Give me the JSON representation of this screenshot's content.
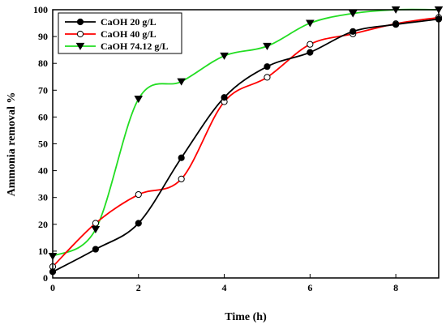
{
  "chart_data": {
    "type": "line",
    "xlabel": "Time (h)",
    "ylabel": "Ammonia removal %",
    "xlim": [
      0,
      9
    ],
    "ylim": [
      0,
      100
    ],
    "xticks": [
      0,
      2,
      4,
      6,
      8
    ],
    "yticks": [
      0,
      10,
      20,
      30,
      40,
      50,
      60,
      70,
      80,
      90,
      100
    ],
    "grid": false,
    "legend": "top-left",
    "x": [
      0,
      1,
      2,
      3,
      4,
      5,
      6,
      7,
      8,
      9
    ],
    "series": [
      {
        "name": "CaOH 20 g/L",
        "color": "#000000",
        "marker": "filled-circle",
        "values": [
          2.3,
          10.7,
          20.4,
          44.8,
          67.3,
          78.8,
          84.1,
          91.9,
          94.5,
          96.5
        ]
      },
      {
        "name": "CaOH 40 g/L",
        "color": "#ff0000",
        "marker": "open-circle",
        "values": [
          4.2,
          20.4,
          31.1,
          36.9,
          65.7,
          74.8,
          87.1,
          91.0,
          94.8,
          97.1
        ]
      },
      {
        "name": "CaOH 74.12 g/L",
        "color": "#22dd22",
        "marker": "filled-triangle-down",
        "values": [
          8.1,
          18.1,
          66.7,
          73.2,
          82.8,
          86.4,
          95.0,
          98.6,
          100.0,
          100.0
        ]
      }
    ]
  }
}
